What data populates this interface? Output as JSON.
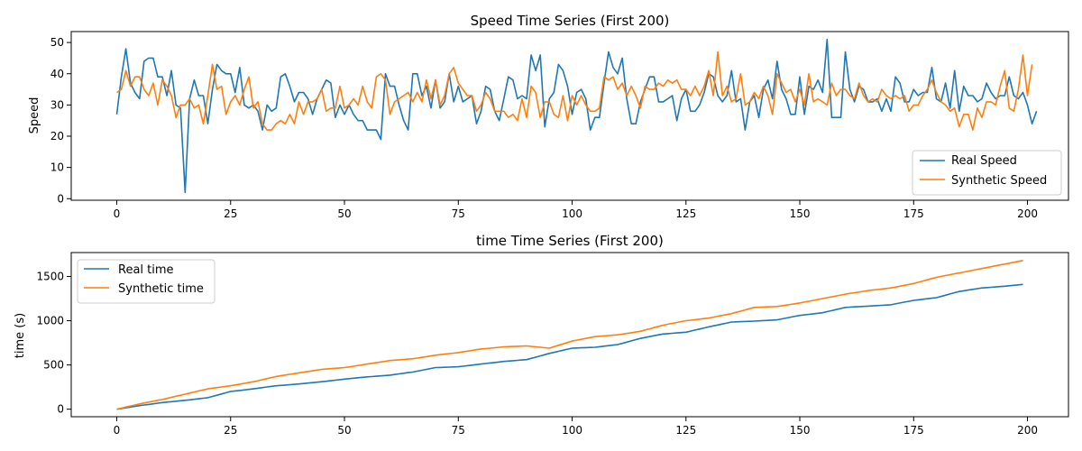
{
  "chart_data": [
    {
      "type": "line",
      "title": "Speed Time Series (First 200)",
      "xlabel": "",
      "ylabel": "Speed",
      "xlim": [
        -10,
        209
      ],
      "ylim": [
        -0.5,
        53.5
      ],
      "xticks": [
        0,
        25,
        50,
        75,
        100,
        125,
        150,
        175,
        200
      ],
      "yticks": [
        0,
        10,
        20,
        30,
        40,
        50
      ],
      "legend_position": "lower-right",
      "series": [
        {
          "name": "Real Speed",
          "color": "#1f77b4",
          "values": [
            27,
            39,
            48,
            37,
            34,
            32,
            44,
            45,
            45,
            39,
            39,
            33,
            41,
            30,
            29,
            2,
            32,
            38,
            33,
            33,
            24,
            35,
            43,
            41,
            40,
            40,
            34,
            42,
            30,
            29,
            30,
            28,
            22,
            30,
            28,
            29,
            39,
            40,
            36,
            31,
            34,
            34,
            32,
            27,
            32,
            35,
            38,
            37,
            26,
            30,
            27,
            30,
            27,
            25,
            25,
            22,
            22,
            22,
            19,
            40,
            36,
            36,
            30,
            25,
            22,
            40,
            40,
            33,
            36,
            29,
            38,
            29,
            31,
            40,
            31,
            36,
            31,
            32,
            33,
            24,
            28,
            36,
            35,
            28,
            25,
            32,
            39,
            38,
            32,
            33,
            32,
            46,
            41,
            46,
            23,
            32,
            34,
            43,
            41,
            36,
            27,
            34,
            35,
            32,
            22,
            26,
            26,
            37,
            47,
            42,
            40,
            45,
            32,
            24,
            24,
            31,
            35,
            39,
            39,
            31,
            31,
            32,
            33,
            25,
            32,
            35,
            28,
            28,
            30,
            34,
            40,
            39,
            33,
            31,
            33,
            41,
            31,
            32,
            22,
            31,
            33,
            26,
            35,
            38,
            32,
            44,
            35,
            32,
            27,
            27,
            39,
            27,
            36,
            35,
            38,
            34,
            51,
            26,
            26,
            26,
            47,
            35,
            31,
            36,
            35,
            31,
            31,
            32,
            28,
            32,
            28,
            39,
            37,
            31,
            31,
            35,
            33,
            34,
            34,
            42,
            32,
            31,
            37,
            29,
            41,
            28,
            36,
            33,
            33,
            31,
            32,
            37,
            34,
            32,
            33,
            33,
            39,
            33,
            32,
            34,
            30,
            24,
            28
          ]
        },
        {
          "name": "Synthetic Speed",
          "color": "#ff7f0e",
          "values": [
            34,
            35,
            41,
            36,
            39,
            39,
            35,
            33,
            37,
            30,
            38,
            36,
            33,
            26,
            30,
            30,
            32,
            29,
            30,
            24,
            33,
            43,
            35,
            36,
            27,
            31,
            33,
            30,
            35,
            39,
            29,
            31,
            24,
            22,
            22,
            24,
            25,
            24,
            27,
            24,
            31,
            27,
            31,
            31,
            32,
            35,
            28,
            29,
            29,
            36,
            29,
            30,
            32,
            30,
            36,
            31,
            29,
            39,
            40,
            38,
            27,
            31,
            32,
            33,
            34,
            31,
            34,
            31,
            38,
            32,
            38,
            30,
            33,
            40,
            42,
            37,
            35,
            33,
            33,
            28,
            30,
            34,
            32,
            28,
            28,
            28,
            26,
            27,
            25,
            32,
            26,
            36,
            34,
            26,
            31,
            31,
            27,
            26,
            33,
            25,
            33,
            30,
            33,
            30,
            28,
            28,
            29,
            39,
            38,
            39,
            35,
            37,
            33,
            36,
            33,
            29,
            36,
            35,
            35,
            37,
            36,
            38,
            37,
            38,
            35,
            35,
            33,
            36,
            33,
            36,
            41,
            33,
            47,
            33,
            36,
            31,
            32,
            40,
            30,
            31,
            34,
            32,
            36,
            33,
            27,
            40,
            37,
            34,
            35,
            31,
            35,
            30,
            40,
            31,
            32,
            31,
            30,
            37,
            33,
            35,
            35,
            33,
            32,
            37,
            33,
            31,
            32,
            31,
            35,
            33,
            32,
            33,
            32,
            33,
            28,
            30,
            30,
            33,
            35,
            38,
            34,
            31,
            30,
            28,
            29,
            23,
            27,
            27,
            22,
            29,
            26,
            31,
            31,
            30,
            36,
            41,
            29,
            28,
            35,
            46,
            33,
            43
          ]
        }
      ]
    },
    {
      "type": "line",
      "title": "time Time Series (First 200)",
      "xlabel": "",
      "ylabel": "time (s)",
      "xlim": [
        -10,
        209
      ],
      "ylim": [
        -85,
        1770
      ],
      "xticks": [
        0,
        25,
        50,
        75,
        100,
        125,
        150,
        175,
        200
      ],
      "yticks": [
        0,
        500,
        1000,
        1500
      ],
      "legend_position": "upper-left",
      "series": [
        {
          "name": "Real time",
          "color": "#1f77b4",
          "anchor_points": [
            [
              0,
              0
            ],
            [
              5,
              40
            ],
            [
              10,
              75
            ],
            [
              15,
              100
            ],
            [
              20,
              130
            ],
            [
              25,
              200
            ],
            [
              30,
              230
            ],
            [
              35,
              265
            ],
            [
              40,
              285
            ],
            [
              45,
              310
            ],
            [
              50,
              340
            ],
            [
              55,
              365
            ],
            [
              60,
              385
            ],
            [
              65,
              420
            ],
            [
              70,
              470
            ],
            [
              75,
              480
            ],
            [
              80,
              510
            ],
            [
              85,
              540
            ],
            [
              90,
              560
            ],
            [
              95,
              630
            ],
            [
              100,
              690
            ],
            [
              105,
              700
            ],
            [
              110,
              730
            ],
            [
              115,
              800
            ],
            [
              120,
              850
            ],
            [
              125,
              870
            ],
            [
              130,
              930
            ],
            [
              135,
              985
            ],
            [
              140,
              995
            ],
            [
              145,
              1010
            ],
            [
              150,
              1060
            ],
            [
              155,
              1090
            ],
            [
              160,
              1150
            ],
            [
              165,
              1165
            ],
            [
              170,
              1180
            ],
            [
              175,
              1230
            ],
            [
              180,
              1260
            ],
            [
              185,
              1330
            ],
            [
              190,
              1370
            ],
            [
              195,
              1390
            ],
            [
              199,
              1410
            ]
          ]
        },
        {
          "name": "Synthetic time",
          "color": "#ff7f0e",
          "anchor_points": [
            [
              0,
              0
            ],
            [
              5,
              60
            ],
            [
              10,
              110
            ],
            [
              15,
              170
            ],
            [
              20,
              230
            ],
            [
              25,
              265
            ],
            [
              30,
              310
            ],
            [
              35,
              370
            ],
            [
              40,
              410
            ],
            [
              45,
              450
            ],
            [
              50,
              470
            ],
            [
              55,
              510
            ],
            [
              60,
              550
            ],
            [
              65,
              570
            ],
            [
              70,
              610
            ],
            [
              75,
              640
            ],
            [
              80,
              680
            ],
            [
              85,
              705
            ],
            [
              90,
              715
            ],
            [
              95,
              690
            ],
            [
              100,
              770
            ],
            [
              105,
              820
            ],
            [
              110,
              840
            ],
            [
              115,
              880
            ],
            [
              120,
              950
            ],
            [
              125,
              1000
            ],
            [
              130,
              1030
            ],
            [
              135,
              1080
            ],
            [
              140,
              1150
            ],
            [
              145,
              1160
            ],
            [
              150,
              1200
            ],
            [
              155,
              1250
            ],
            [
              160,
              1300
            ],
            [
              165,
              1340
            ],
            [
              170,
              1370
            ],
            [
              175,
              1420
            ],
            [
              180,
              1490
            ],
            [
              185,
              1540
            ],
            [
              190,
              1590
            ],
            [
              195,
              1640
            ],
            [
              199,
              1680
            ]
          ]
        }
      ]
    }
  ]
}
